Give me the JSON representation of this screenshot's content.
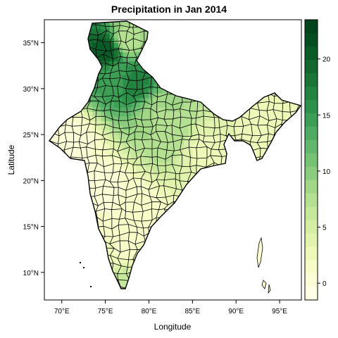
{
  "chart_data": {
    "type": "heatmap",
    "title": "Precipitation in Jan 2014",
    "xlabel": "Longitude",
    "ylabel": "Latitude",
    "xlim": [
      68,
      97.5
    ],
    "ylim": [
      7,
      37.5
    ],
    "x_ticks": [
      70,
      75,
      80,
      85,
      90,
      95
    ],
    "x_tick_labels": [
      "70°E",
      "75°E",
      "80°E",
      "85°E",
      "90°E",
      "95°E"
    ],
    "y_ticks": [
      10,
      15,
      20,
      25,
      30,
      35
    ],
    "y_tick_labels": [
      "10°N",
      "15°N",
      "20°N",
      "25°N",
      "30°N",
      "35°N"
    ],
    "colorbar": {
      "range": [
        -1.5,
        23.5
      ],
      "ticks": [
        0,
        5,
        10,
        15,
        20
      ],
      "tick_labels": [
        "0",
        "5",
        "10",
        "15",
        "20"
      ],
      "colors": [
        "#ffffe5",
        "#fbfdd6",
        "#f7fcc8",
        "#eef8b9",
        "#e2f3ae",
        "#d5eea4",
        "#c6e89b",
        "#b4e091",
        "#a1d787",
        "#8ccd7d",
        "#76c274",
        "#61b76b",
        "#4eab61",
        "#3d9f56",
        "#2e914b",
        "#238340",
        "#1b7537",
        "#12682f",
        "#0a5b28",
        "#044f21",
        "#00441b"
      ]
    },
    "regions": [
      {
        "lon": 71,
        "lat": 24,
        "value": 0.5
      },
      {
        "lon": 74,
        "lat": 19,
        "value": 0.5
      },
      {
        "lon": 78,
        "lat": 16,
        "value": 1
      },
      {
        "lon": 77,
        "lat": 12,
        "value": 2
      },
      {
        "lon": 77,
        "lat": 9,
        "value": 6
      },
      {
        "lon": 81,
        "lat": 27,
        "value": 8
      },
      {
        "lon": 82,
        "lat": 25,
        "value": 8
      },
      {
        "lon": 86,
        "lat": 23,
        "value": 3
      },
      {
        "lon": 93,
        "lat": 26,
        "value": 3
      },
      {
        "lon": 76,
        "lat": 31,
        "value": 14
      },
      {
        "lon": 78,
        "lat": 30.5,
        "value": 17
      },
      {
        "lon": 75,
        "lat": 34,
        "value": 21
      },
      {
        "lon": 77,
        "lat": 35,
        "value": 7
      }
    ]
  }
}
